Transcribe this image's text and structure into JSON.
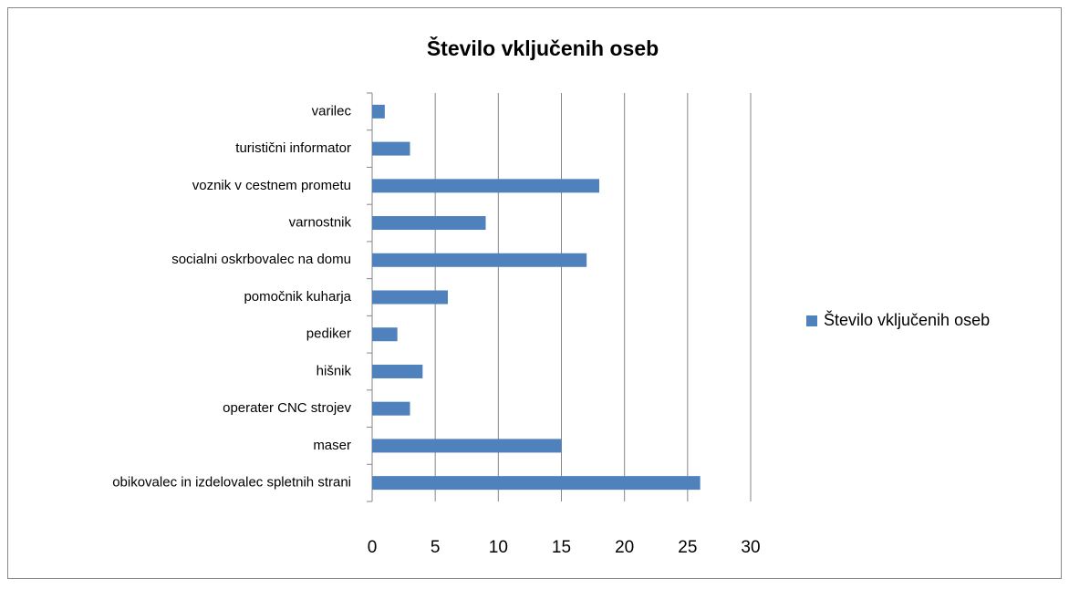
{
  "chart_data": {
    "type": "bar",
    "orientation": "horizontal",
    "title": "Število vključenih oseb",
    "categories": [
      "varilec",
      "turistični informator",
      "voznik v cestnem prometu",
      "varnostnik",
      "socialni oskrbovalec na domu",
      "pomočnik kuharja",
      "pediker",
      "hišnik",
      "operater CNC strojev",
      "maser",
      "obikovalec in izdelovalec spletnih strani"
    ],
    "series": [
      {
        "name": "Število vključenih oseb",
        "color": "#4f81bd",
        "values": [
          1,
          3,
          18,
          9,
          17,
          6,
          2,
          4,
          3,
          15,
          26
        ]
      }
    ],
    "xlim": [
      0,
      30
    ],
    "xticks": [
      0,
      5,
      10,
      15,
      20,
      25,
      30
    ],
    "grid": true,
    "legend": "right"
  }
}
